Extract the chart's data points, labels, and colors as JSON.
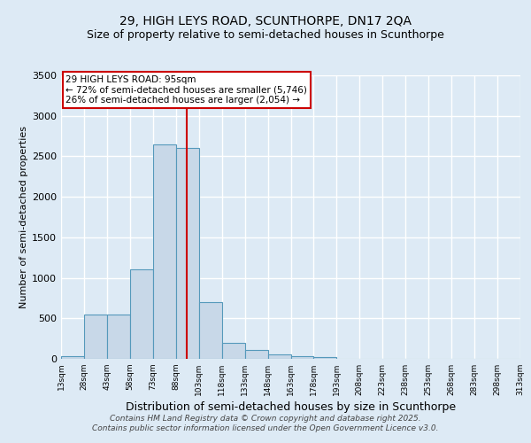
{
  "title": "29, HIGH LEYS ROAD, SCUNTHORPE, DN17 2QA",
  "subtitle": "Size of property relative to semi-detached houses in Scunthorpe",
  "xlabel": "Distribution of semi-detached houses by size in Scunthorpe",
  "ylabel": "Number of semi-detached properties",
  "bar_edges": [
    13,
    28,
    43,
    58,
    73,
    88,
    103,
    118,
    133,
    148,
    163,
    178,
    193,
    208,
    223,
    238,
    253,
    268,
    283,
    298,
    313
  ],
  "bar_heights": [
    30,
    550,
    550,
    1100,
    2650,
    2600,
    700,
    200,
    110,
    50,
    30,
    20,
    0,
    0,
    0,
    0,
    0,
    0,
    0,
    0
  ],
  "bar_color": "#c8d8e8",
  "bar_edge_color": "#5599bb",
  "vline_x": 95,
  "vline_color": "#cc0000",
  "ylim": [
    0,
    3500
  ],
  "yticks": [
    0,
    500,
    1000,
    1500,
    2000,
    2500,
    3000,
    3500
  ],
  "annotation_title": "29 HIGH LEYS ROAD: 95sqm",
  "annotation_line1": "← 72% of semi-detached houses are smaller (5,746)",
  "annotation_line2": "26% of semi-detached houses are larger (2,054) →",
  "annotation_box_color": "#ffffff",
  "annotation_box_edge": "#cc0000",
  "footer1": "Contains HM Land Registry data © Crown copyright and database right 2025.",
  "footer2": "Contains public sector information licensed under the Open Government Licence v3.0.",
  "bg_color": "#ddeaf5",
  "plot_bg_color": "#ddeaf5",
  "grid_color": "#ffffff",
  "title_fontsize": 10,
  "subtitle_fontsize": 9
}
